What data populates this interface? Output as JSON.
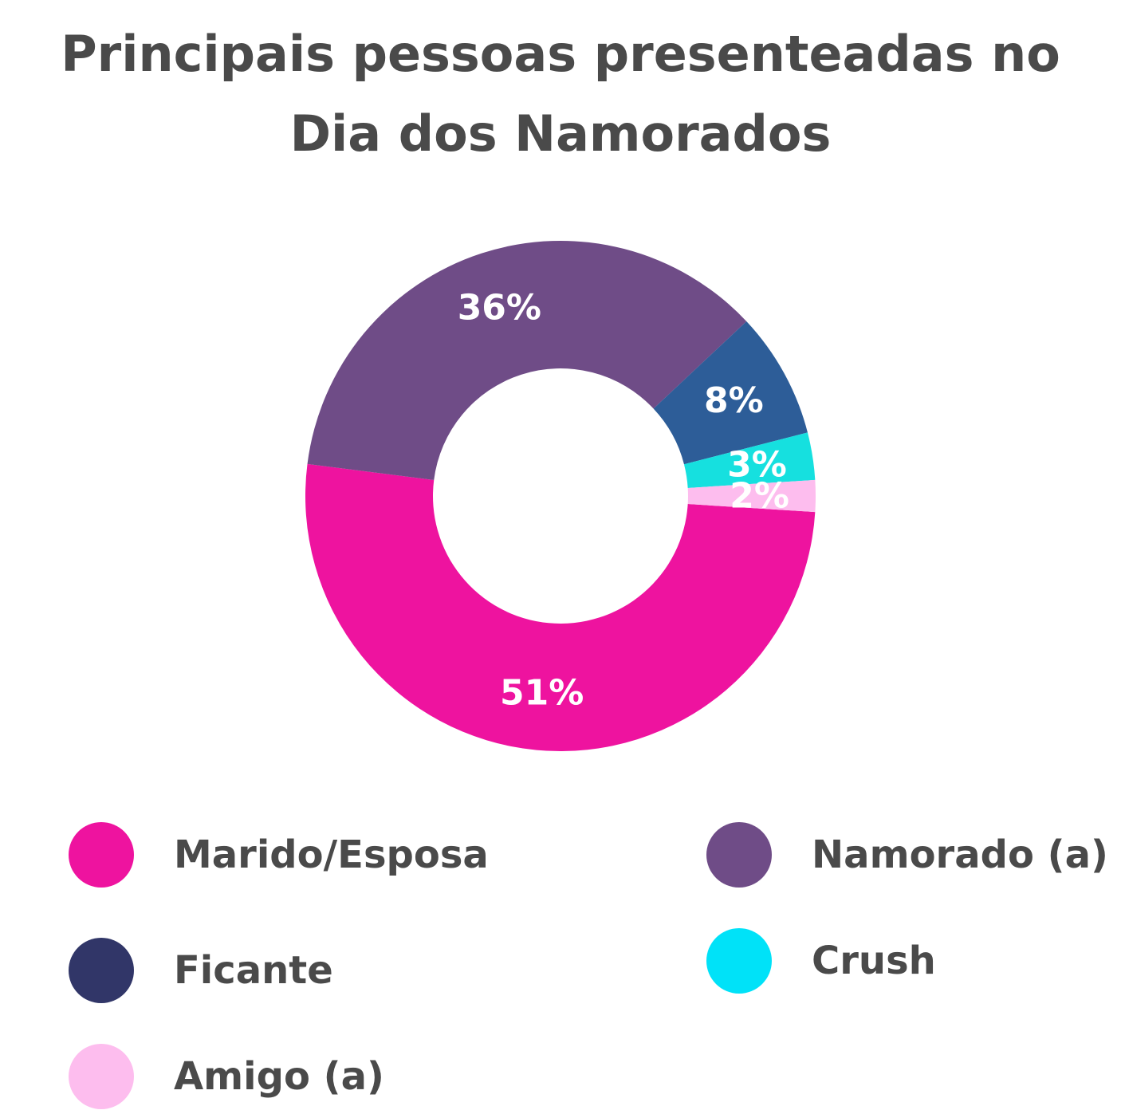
{
  "chart_data": {
    "type": "pie",
    "variant": "donut",
    "title": "Principais pessoas presenteadas no Dia dos Namorados",
    "legend_position": "bottom",
    "series": [
      {
        "name": "Marido/Esposa",
        "value": 51,
        "label": "51%",
        "color": "#ee139f"
      },
      {
        "name": "Namorado (a)",
        "value": 36,
        "label": "36%",
        "color": "#6f4c87"
      },
      {
        "name": "Ficante",
        "value": 8,
        "label": "8%",
        "color": "#2d5d98"
      },
      {
        "name": "Crush",
        "value": 3,
        "label": "3%",
        "color": "#16e0df"
      },
      {
        "name": "Amigo (a)",
        "value": 2,
        "label": "2%",
        "color": "#fdbdee"
      }
    ],
    "legend": [
      {
        "name": "Marido/Esposa",
        "color": "#ee139f"
      },
      {
        "name": "Namorado (a)",
        "color": "#6f4c87"
      },
      {
        "name": "Ficante",
        "color": "#313668"
      },
      {
        "name": "Crush",
        "color": "#00e2f8"
      },
      {
        "name": "Amigo (a)",
        "color": "#fdbdee"
      }
    ]
  }
}
